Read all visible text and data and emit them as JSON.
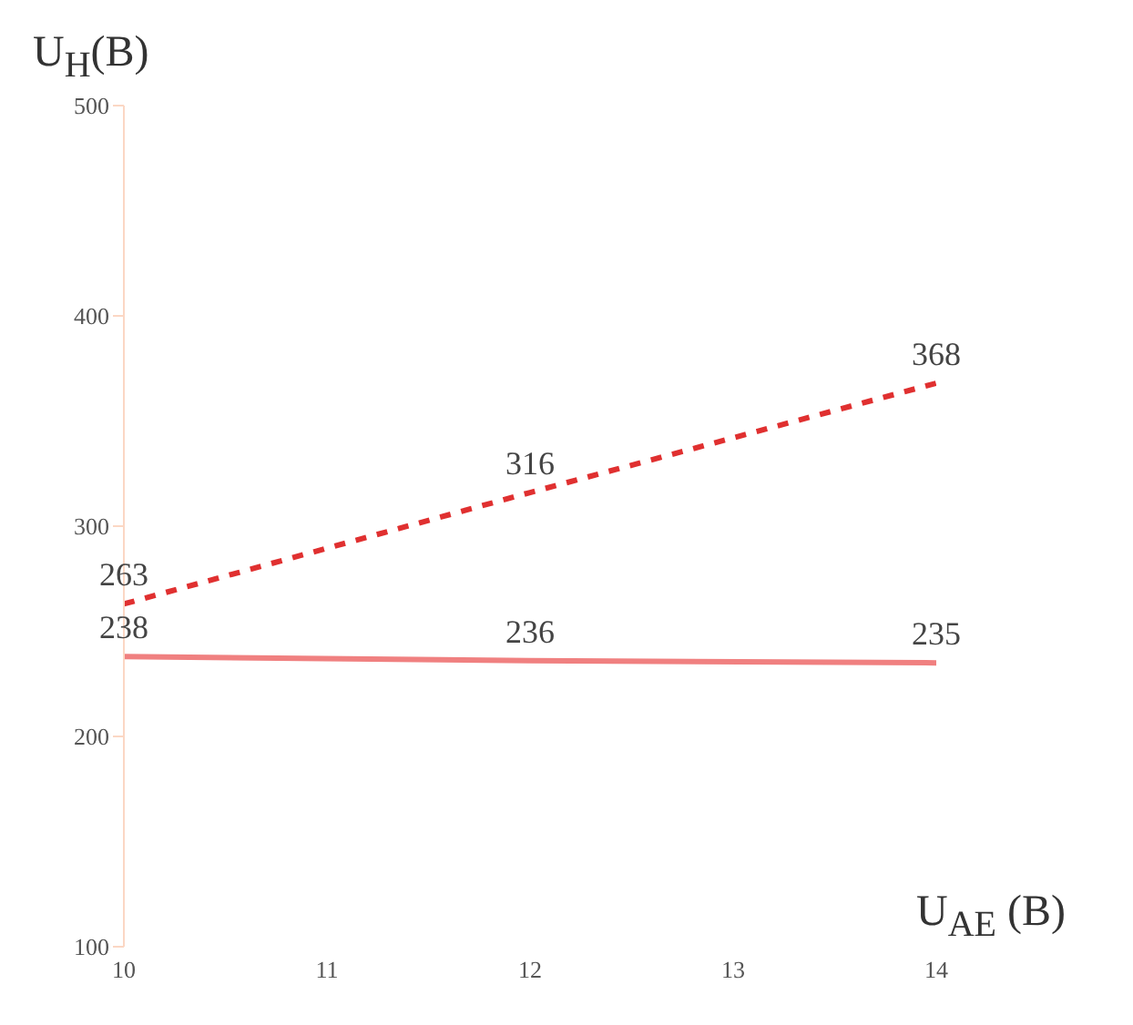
{
  "chart_data": {
    "type": "line",
    "xlabel": "U$_{AE}$ (B)",
    "ylabel": "U$_{H}$(B)",
    "x": [
      10,
      12,
      14
    ],
    "series": [
      {
        "color": "#e03030",
        "values": [
          263,
          316,
          368
        ],
        "line_style": "dashed"
      },
      {
        "color": "#f08080",
        "values": [
          238,
          236,
          235
        ],
        "line_style": "solid"
      }
    ],
    "xlim": [
      10,
      14
    ],
    "xticks": [
      10,
      11,
      12,
      13,
      14
    ],
    "ylim": [
      100,
      500
    ],
    "yticks": [
      100,
      200,
      300,
      400,
      500
    ],
    "data_labels": true,
    "grid": false,
    "marker": "none"
  }
}
